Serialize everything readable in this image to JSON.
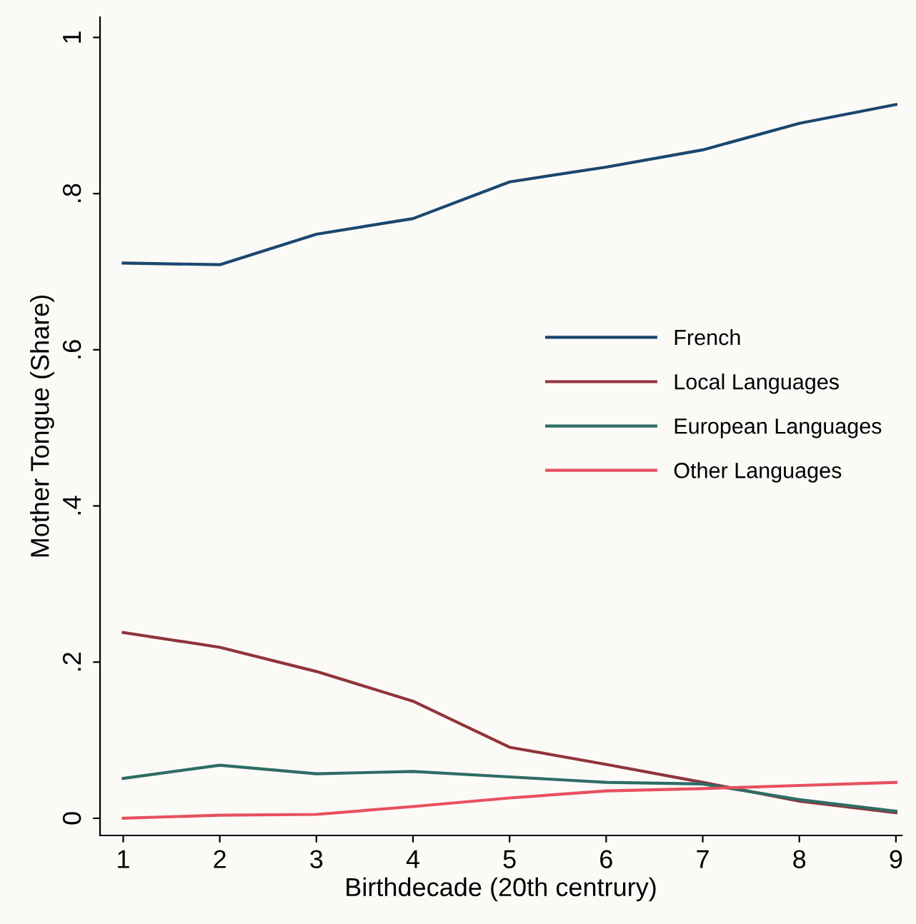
{
  "chart_data": {
    "type": "line",
    "xlabel": "Birthdecade (20th centrury)",
    "ylabel": "Mother Tongue (Share)",
    "x": [
      1,
      2,
      3,
      4,
      5,
      6,
      7,
      8,
      9
    ],
    "series": [
      {
        "name": "French",
        "color": "#1a476f",
        "values": [
          0.711,
          0.709,
          0.748,
          0.768,
          0.815,
          0.834,
          0.856,
          0.89,
          0.914
        ]
      },
      {
        "name": "Local Languages",
        "color": "#90353b",
        "values": [
          0.238,
          0.219,
          0.188,
          0.15,
          0.091,
          0.069,
          0.046,
          0.022,
          0.007
        ]
      },
      {
        "name": "European Languages",
        "color": "#2d6d66",
        "values": [
          0.051,
          0.068,
          0.057,
          0.06,
          0.053,
          0.046,
          0.044,
          0.024,
          0.009
        ]
      },
      {
        "name": "Other Languages",
        "color": "#e8505f",
        "values": [
          0.0,
          0.004,
          0.005,
          0.015,
          0.026,
          0.035,
          0.038,
          0.042,
          0.046
        ]
      }
    ],
    "xlim": [
      0.76,
      9.06
    ],
    "xticks": [
      1,
      2,
      3,
      4,
      5,
      6,
      7,
      8,
      9
    ],
    "ylim": [
      -0.022,
      1.026
    ],
    "yticks": [
      0,
      {
        "value": 0.2,
        "label": ".2"
      },
      {
        "value": 0.4,
        "label": ".4"
      },
      {
        "value": 0.6,
        "label": ".6"
      },
      {
        "value": 0.8,
        "label": ".8"
      },
      1
    ],
    "legend": "center right",
    "grid": false,
    "marker": "none",
    "line_style": "solid"
  }
}
